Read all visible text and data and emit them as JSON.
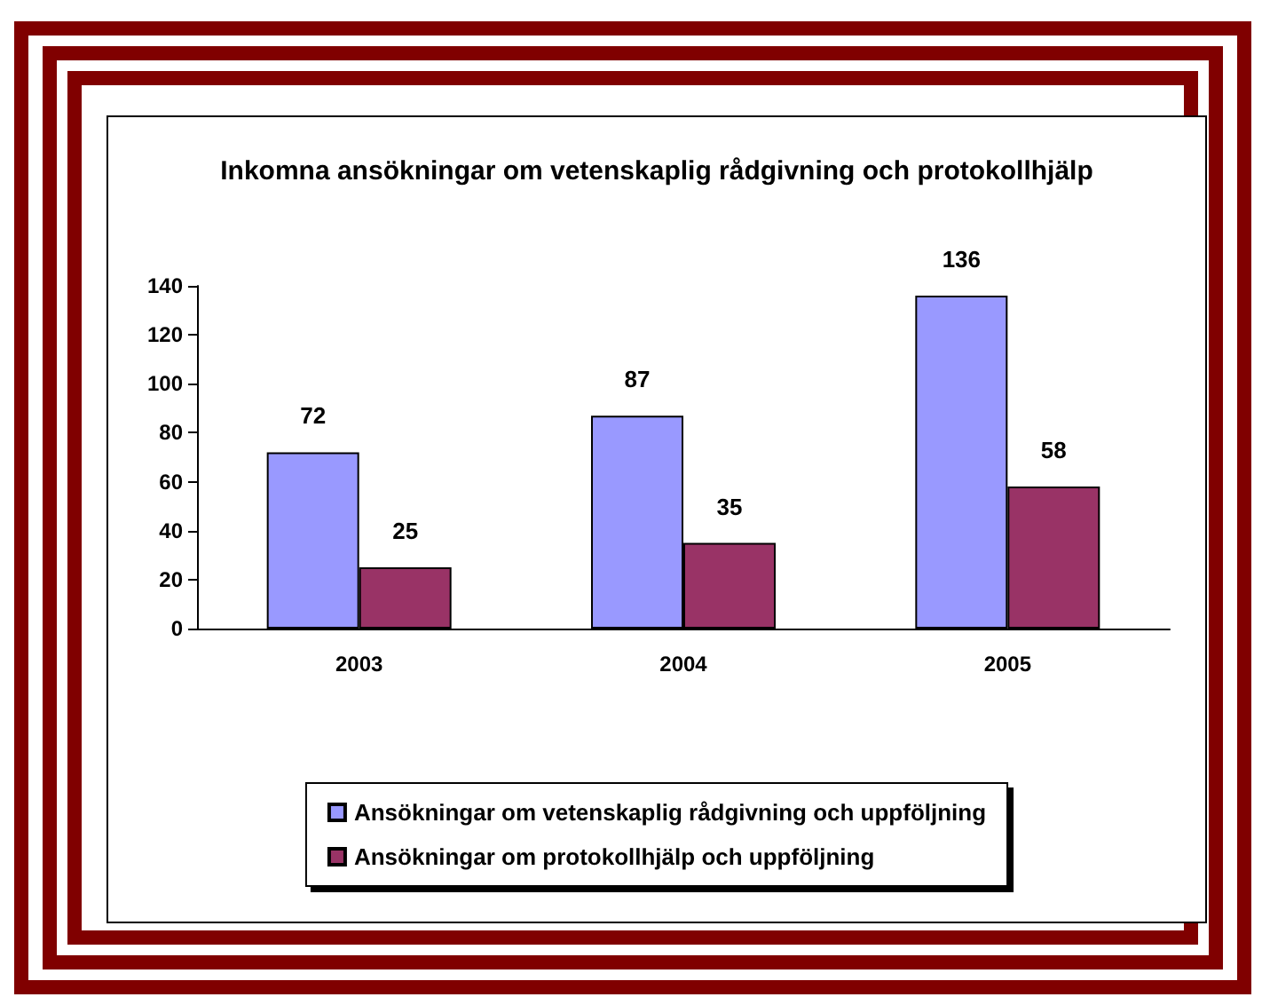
{
  "chart_data": {
    "type": "bar",
    "title": "Inkomna ansökningar om vetenskaplig rådgivning och protokollhjälp",
    "categories": [
      "2003",
      "2004",
      "2005"
    ],
    "series": [
      {
        "name": "Ansökningar om vetenskaplig rådgivning och uppföljning",
        "color": "#9999ff",
        "values": [
          72,
          87,
          136
        ]
      },
      {
        "name": "Ansökningar om protokollhjälp och uppföljning",
        "color": "#993366",
        "values": [
          25,
          35,
          58
        ]
      }
    ],
    "ylim": [
      0,
      140
    ],
    "yticks": [
      0,
      20,
      40,
      60,
      80,
      100,
      120,
      140
    ],
    "grid": false,
    "legend": "bottom",
    "data_labels": true
  }
}
